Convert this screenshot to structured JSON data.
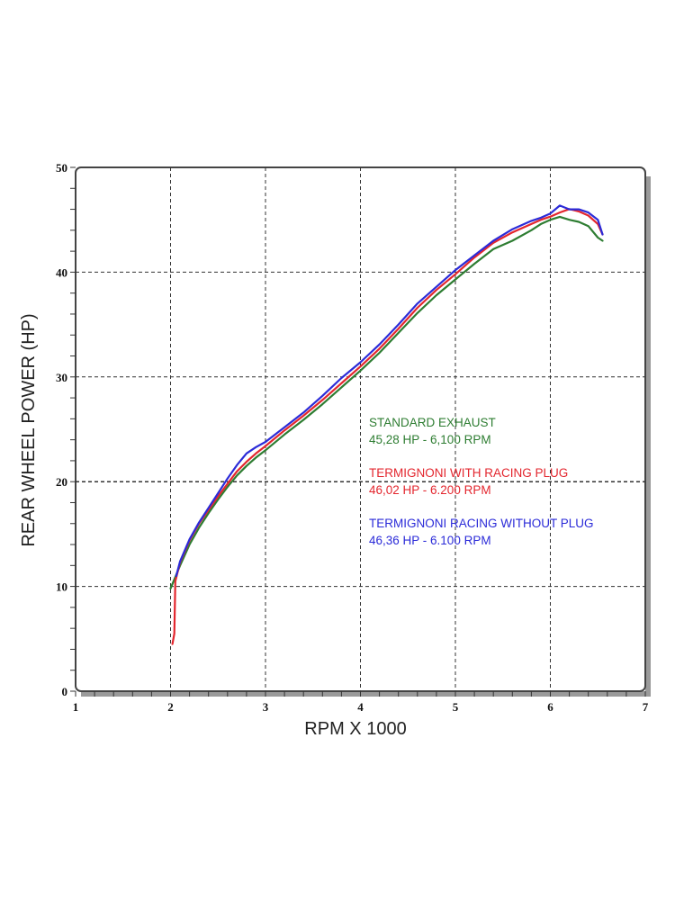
{
  "chart_data": {
    "type": "line",
    "title": "",
    "xlabel": "RPM X 1000",
    "ylabel": "REAR WHEEL POWER (HP)",
    "xlim": [
      1,
      7
    ],
    "ylim": [
      0,
      50
    ],
    "x_ticks": [
      "1",
      "2",
      "3",
      "4",
      "5",
      "6",
      "7"
    ],
    "y_ticks": [
      "0",
      "10",
      "20",
      "30",
      "40",
      "50"
    ],
    "grid": true,
    "legend_placement": "center-right",
    "series": [
      {
        "name": "STANDARD EXHAUST",
        "subtitle": "45,28 HP - 6,100 RPM",
        "color": "#2e7d32",
        "x": [
          2.0,
          2.1,
          2.2,
          2.3,
          2.4,
          2.5,
          2.6,
          2.7,
          2.8,
          2.9,
          3.0,
          3.2,
          3.4,
          3.6,
          3.8,
          4.0,
          4.2,
          4.4,
          4.6,
          4.8,
          5.0,
          5.2,
          5.4,
          5.6,
          5.8,
          5.9,
          6.0,
          6.1,
          6.2,
          6.3,
          6.4,
          6.5,
          6.55
        ],
        "y": [
          9.8,
          12.0,
          14.0,
          15.6,
          17.0,
          18.3,
          19.5,
          20.6,
          21.5,
          22.3,
          23.0,
          24.5,
          25.9,
          27.4,
          29.0,
          30.6,
          32.3,
          34.2,
          36.1,
          37.8,
          39.3,
          40.8,
          42.2,
          43.0,
          44.0,
          44.6,
          45.0,
          45.28,
          45.0,
          44.8,
          44.4,
          43.3,
          43.0
        ]
      },
      {
        "name": "TERMIGNONI WITH RACING PLUG",
        "subtitle": "46,02 HP - 6.200 RPM",
        "color": "#e3262e",
        "x": [
          2.02,
          2.04,
          2.05,
          2.1,
          2.2,
          2.3,
          2.4,
          2.5,
          2.6,
          2.7,
          2.8,
          2.9,
          3.0,
          3.2,
          3.4,
          3.6,
          3.8,
          4.0,
          4.2,
          4.4,
          4.6,
          4.8,
          5.0,
          5.2,
          5.4,
          5.6,
          5.8,
          5.9,
          6.0,
          6.1,
          6.2,
          6.3,
          6.4,
          6.5,
          6.55
        ],
        "y": [
          4.5,
          5.5,
          10.5,
          12.3,
          14.4,
          16.0,
          17.3,
          18.6,
          19.8,
          21.0,
          21.9,
          22.7,
          23.4,
          24.9,
          26.3,
          27.8,
          29.4,
          31.0,
          32.7,
          34.6,
          36.6,
          38.3,
          39.8,
          41.4,
          42.8,
          43.8,
          44.6,
          45.0,
          45.3,
          45.7,
          46.02,
          45.8,
          45.4,
          44.6,
          43.6
        ]
      },
      {
        "name": "TERMIGNONI RACING WITHOUT PLUG",
        "subtitle": "46,36 HP - 6.100 RPM",
        "color": "#2b2bd8",
        "x": [
          2.06,
          2.1,
          2.2,
          2.3,
          2.4,
          2.5,
          2.6,
          2.7,
          2.8,
          2.9,
          3.0,
          3.2,
          3.4,
          3.6,
          3.8,
          4.0,
          4.2,
          4.4,
          4.6,
          4.8,
          5.0,
          5.2,
          5.4,
          5.6,
          5.8,
          5.9,
          6.0,
          6.1,
          6.2,
          6.3,
          6.4,
          6.5,
          6.55
        ],
        "y": [
          11.0,
          12.4,
          14.5,
          16.1,
          17.5,
          18.9,
          20.3,
          21.6,
          22.7,
          23.3,
          23.8,
          25.2,
          26.6,
          28.2,
          29.9,
          31.4,
          33.1,
          35.0,
          37.0,
          38.6,
          40.2,
          41.6,
          43.0,
          44.1,
          44.9,
          45.2,
          45.6,
          46.36,
          46.0,
          46.0,
          45.7,
          45.0,
          43.6
        ]
      }
    ]
  }
}
